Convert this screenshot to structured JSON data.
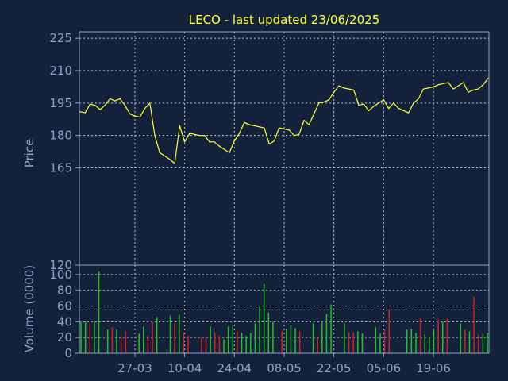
{
  "title": "LECO - last updated 23/06/2025",
  "colors": {
    "background": "#13213a",
    "axis": "#8ca6c8",
    "grid": "#b9c4d2",
    "text": "#8ca6c8",
    "title": "#ffff33",
    "price_line": "#ffff33",
    "volume_up": "#22c322",
    "volume_down": "#d22020"
  },
  "chart_data": [
    {
      "type": "line",
      "title": "LECO - last updated 23/06/2025",
      "ylabel": "Price",
      "xlabel": "",
      "ylim": [
        120,
        228
      ],
      "y_ticks": [
        120,
        165,
        180,
        195,
        210,
        225
      ],
      "x_tick_labels": [
        "27-03",
        "10-04",
        "24-04",
        "08-05",
        "22-05",
        "05-06",
        "19-06"
      ],
      "x_tick_index": [
        11,
        21,
        31,
        41,
        51,
        61,
        71
      ],
      "grid": true,
      "series": [
        {
          "values": [
            191,
            190.5,
            194.5,
            194,
            192,
            194,
            197,
            196,
            197,
            194,
            190,
            189,
            188.5,
            192.5,
            195,
            180,
            172,
            170.5,
            169,
            167,
            184.5,
            177,
            181,
            180.5,
            180,
            180,
            177,
            177,
            175,
            173.5,
            172,
            177.5,
            181,
            186,
            185,
            184.5,
            184,
            183.5,
            176,
            177.5,
            183.5,
            183,
            182.5,
            180,
            180.5,
            187,
            185,
            190,
            195,
            195.5,
            196.5,
            200,
            203,
            202,
            201.5,
            201,
            194,
            194.5,
            191.5,
            193.5,
            195,
            196.5,
            192.5,
            195,
            192.5,
            191.5,
            190.5,
            195,
            197,
            201.5,
            202,
            202.5,
            203.5,
            204,
            204.5,
            201.5,
            203,
            204.5,
            200,
            201,
            201.5,
            203.5,
            206.5
          ]
        }
      ]
    },
    {
      "type": "bar",
      "ylabel": "Volume (0000)",
      "ylim": [
        0,
        112
      ],
      "y_ticks": [
        0,
        20,
        40,
        60,
        80,
        100
      ],
      "x_tick_labels": [
        "27-03",
        "10-04",
        "24-04",
        "08-05",
        "22-05",
        "05-06",
        "19-06"
      ],
      "grid": true,
      "values": [
        40,
        40,
        39,
        41,
        104,
        0,
        30,
        33,
        30,
        20,
        28,
        0,
        0,
        25,
        34,
        22,
        40,
        46,
        0,
        0,
        48,
        38,
        49,
        26,
        22,
        0,
        0,
        20,
        20,
        34,
        26,
        22,
        18,
        34,
        36,
        28,
        26,
        22,
        26,
        38,
        59,
        88,
        52,
        40,
        0,
        28,
        31,
        36,
        32,
        28,
        0,
        0,
        38,
        20,
        40,
        50,
        62,
        0,
        0,
        38,
        27,
        26,
        28,
        25,
        0,
        0,
        33,
        25,
        30,
        56,
        0,
        0,
        0,
        30,
        31,
        26,
        45,
        24,
        20,
        30,
        43,
        40,
        44,
        0,
        0,
        38,
        30,
        28,
        72,
        24,
        25,
        26
      ],
      "directions": [
        "up",
        "up",
        "down",
        "up",
        "up",
        "up",
        "up",
        "down",
        "up",
        "down",
        "down",
        "up",
        "up",
        "up",
        "up",
        "down",
        "down",
        "up",
        "up",
        "up",
        "up",
        "down",
        "up",
        "down",
        "down",
        "up",
        "up",
        "down",
        "down",
        "up",
        "down",
        "down",
        "up",
        "up",
        "up",
        "down",
        "up",
        "up",
        "up",
        "up",
        "up",
        "up",
        "up",
        "up",
        "up",
        "down",
        "up",
        "up",
        "up",
        "down",
        "up",
        "up",
        "up",
        "down",
        "up",
        "up",
        "up",
        "up",
        "up",
        "up",
        "down",
        "down",
        "up",
        "up",
        "up",
        "up",
        "up",
        "up",
        "down",
        "down",
        "up",
        "up",
        "up",
        "up",
        "up",
        "up",
        "down",
        "up",
        "up",
        "up",
        "down",
        "up",
        "down",
        "up",
        "up",
        "up",
        "down",
        "up",
        "down",
        "down",
        "up",
        "up"
      ]
    }
  ]
}
